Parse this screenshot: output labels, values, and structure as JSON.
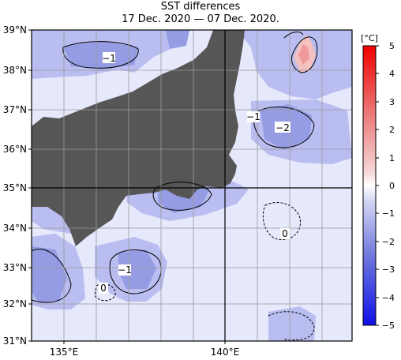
{
  "title": {
    "line1": "SST differences",
    "line2": "17 Dec. 2020 — 07 Dec. 2020."
  },
  "lat_labels": [
    "39°N",
    "38°N",
    "37°N",
    "36°N",
    "35°N",
    "34°N",
    "33°N",
    "32°N",
    "31°N"
  ],
  "lon_labels": [
    "135°E",
    "140°E"
  ],
  "colorbar": {
    "unit": "[°C]",
    "ticks": [
      "5",
      "4",
      "3",
      "2",
      "1",
      "0",
      "−1",
      "−2",
      "−3",
      "−4",
      "−5"
    ]
  },
  "contour_labels": [
    "−1",
    "−1",
    "−2",
    "−1",
    "0",
    "0"
  ],
  "colors": {
    "land": "#565656",
    "ocean_light": "#e6e8fb",
    "ocean_mid": "#a9aee9",
    "ocean_dark": "#7f86dc",
    "warm": "#f5b4b4"
  }
}
